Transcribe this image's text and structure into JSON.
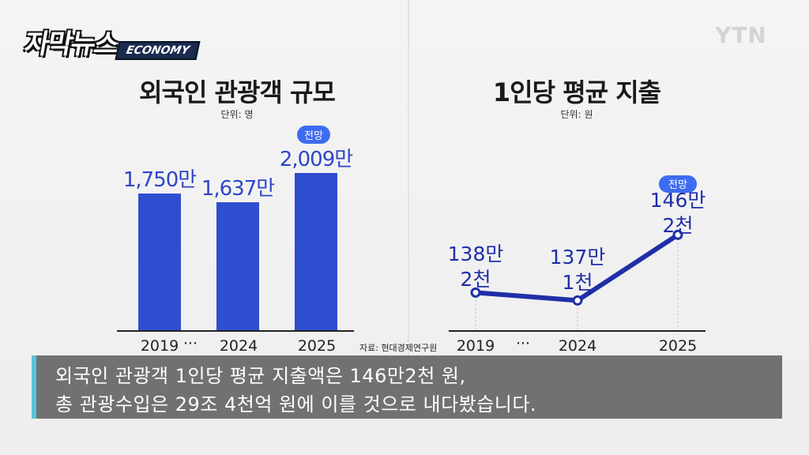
{
  "brand": {
    "logo_main": "자막뉴스",
    "logo_sub": "ECONOMY",
    "broadcaster": "YTN"
  },
  "left_chart": {
    "title": "외국인 관광객 규모",
    "unit": "단위: 명",
    "badge": "전망",
    "labels": [
      "1,750만",
      "1,637만",
      "2,009만"
    ],
    "ellipsis": "···",
    "source": "자료: 현대경제연구원"
  },
  "right_chart": {
    "title": "1인당 평균 지출",
    "unit": "단위: 원",
    "badge": "전망",
    "labels": [
      [
        "138만",
        "2천"
      ],
      [
        "137만",
        "1천"
      ],
      [
        "146만",
        "2천"
      ]
    ],
    "ellipsis": "···"
  },
  "subtitle": {
    "line1": "외국인 관광객 1인당 평균 지출액은 146만2천 원,",
    "line2": "총 관광수입은 29조 4천억 원에 이를 것으로 내다봤습니다."
  },
  "chart_data": [
    {
      "type": "bar",
      "title": "외국인 관광객 규모",
      "categories": [
        "2019",
        "2024",
        "2025"
      ],
      "values": [
        17500000,
        16370000,
        20090000
      ],
      "unit": "명",
      "ylim": [
        0,
        22000000
      ],
      "annotations": [
        "2025: 전망"
      ],
      "color": "#2f4ecf"
    },
    {
      "type": "line",
      "title": "1인당 평균 지출",
      "x": [
        "2019",
        "2024",
        "2025"
      ],
      "values": [
        1382000,
        1371000,
        1462000
      ],
      "unit": "원",
      "ylim": [
        1355000,
        1470000
      ],
      "annotations": [
        "2025: 전망"
      ],
      "color": "#1f2fa8"
    }
  ]
}
